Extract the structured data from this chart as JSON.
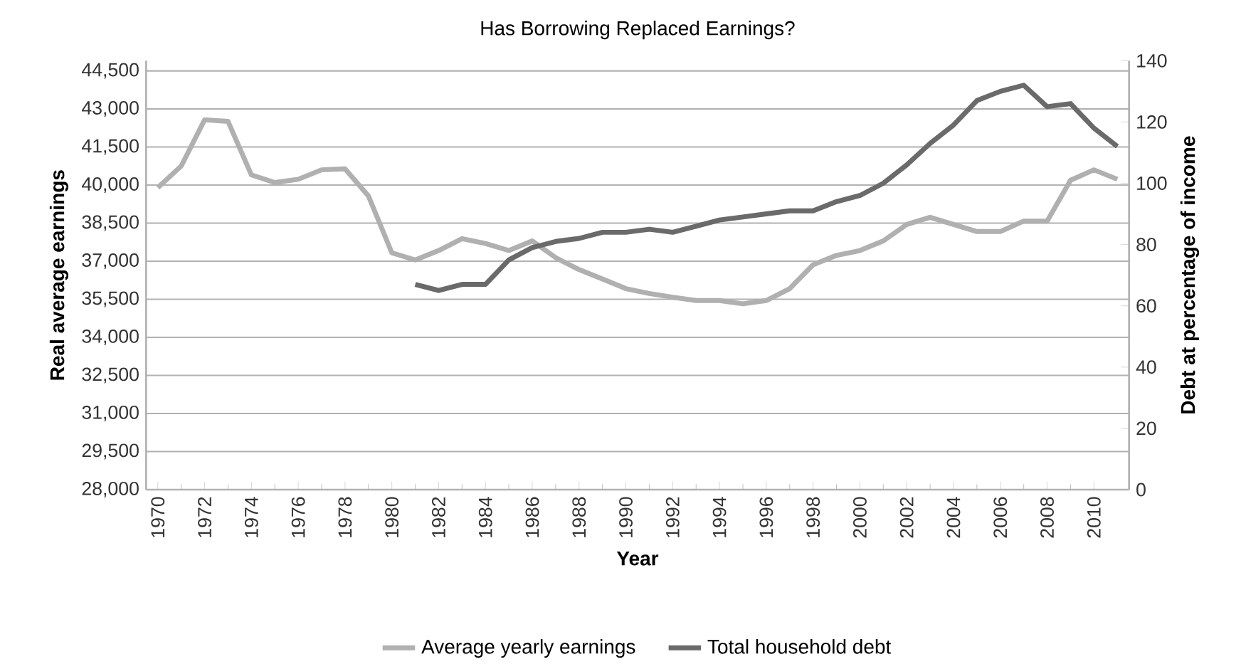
{
  "chart_data": {
    "type": "line",
    "title": "Has Borrowing Replaced Earnings?",
    "xlabel": "Year",
    "ylabel": "Real average earnings",
    "y2label": "Debt at percentage of income",
    "x": [
      1970,
      1971,
      1972,
      1973,
      1974,
      1975,
      1976,
      1977,
      1978,
      1979,
      1980,
      1981,
      1982,
      1983,
      1984,
      1985,
      1986,
      1987,
      1988,
      1989,
      1990,
      1991,
      1992,
      1993,
      1994,
      1995,
      1996,
      1997,
      1998,
      1999,
      2000,
      2001,
      2002,
      2003,
      2004,
      2005,
      2006,
      2007,
      2008,
      2009,
      2010,
      2011
    ],
    "series": [
      {
        "name": "Average yearly earnings",
        "color": "#b0b0b0",
        "values": [
          39900,
          40750,
          42570,
          42510,
          40400,
          40100,
          40230,
          40600,
          40640,
          39570,
          37330,
          37050,
          37420,
          37890,
          37700,
          37420,
          37800,
          37140,
          36670,
          36300,
          35920,
          35730,
          35580,
          35450,
          35450,
          35320,
          35450,
          35920,
          36860,
          37230,
          37420,
          37800,
          38450,
          38730,
          38450,
          38170,
          38170,
          38580,
          38580,
          40190,
          40600,
          40230
        ]
      },
      {
        "name": "Total household debt",
        "color": "#6a6a6a",
        "axis": "y2",
        "values": [
          null,
          null,
          null,
          null,
          null,
          null,
          null,
          null,
          null,
          null,
          null,
          67,
          65,
          67,
          67,
          75,
          79,
          81,
          82,
          84,
          84,
          85,
          84,
          86,
          88,
          89,
          90,
          91,
          91,
          94,
          96,
          100,
          106,
          113,
          119,
          127,
          130,
          132,
          125,
          126,
          118,
          112
        ]
      }
    ],
    "xlim": [
      1969.5,
      2011.5
    ],
    "xticks": [
      1970,
      1972,
      1974,
      1976,
      1978,
      1980,
      1982,
      1984,
      1986,
      1988,
      1990,
      1992,
      1994,
      1996,
      1998,
      2000,
      2002,
      2004,
      2006,
      2008,
      2010
    ],
    "ylim": [
      28000,
      44900
    ],
    "yticks": [
      {
        "value": 28000,
        "label": "28,000"
      },
      {
        "value": 29500,
        "label": "29,500"
      },
      {
        "value": 31000,
        "label": "31,000"
      },
      {
        "value": 32500,
        "label": "32,500"
      },
      {
        "value": 34000,
        "label": "34,000"
      },
      {
        "value": 35500,
        "label": "35,500"
      },
      {
        "value": 37000,
        "label": "37,000"
      },
      {
        "value": 38500,
        "label": "38,500"
      },
      {
        "value": 40000,
        "label": "40,000"
      },
      {
        "value": 41500,
        "label": "41,500"
      },
      {
        "value": 43000,
        "label": "43,000"
      },
      {
        "value": 44500,
        "label": "44,500"
      }
    ],
    "y2lim": [
      0,
      140
    ],
    "y2ticks": [
      0,
      20,
      40,
      60,
      80,
      100,
      120,
      140
    ],
    "grid": "y",
    "legend": "bottom",
    "marker": "none",
    "line_style": "solid"
  }
}
